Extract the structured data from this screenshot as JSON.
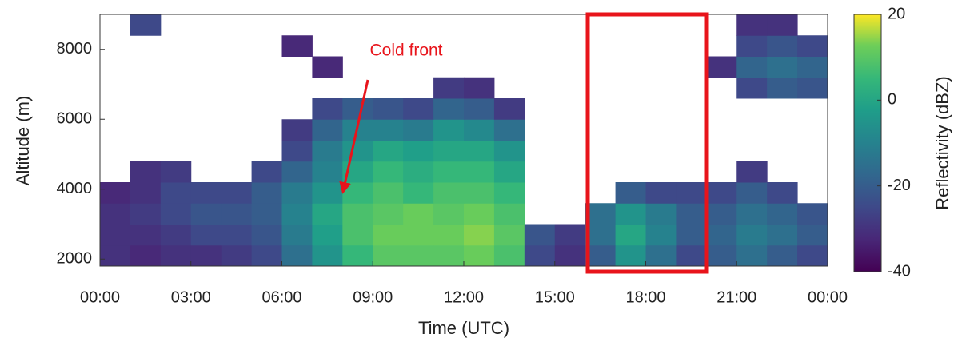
{
  "chart_data": {
    "type": "heatmap",
    "xlabel": "Time (UTC)",
    "ylabel": "Altitude (m)",
    "colorbar_label": "Reflectivity (dBZ)",
    "annotation": "Cold front",
    "colormap": "viridis",
    "xlim": [
      0,
      24
    ],
    "xticks": [
      {
        "value": 0,
        "label": "00:00"
      },
      {
        "value": 3,
        "label": "03:00"
      },
      {
        "value": 6,
        "label": "06:00"
      },
      {
        "value": 9,
        "label": "09:00"
      },
      {
        "value": 12,
        "label": "12:00"
      },
      {
        "value": 15,
        "label": "15:00"
      },
      {
        "value": 18,
        "label": "18:00"
      },
      {
        "value": 21,
        "label": "21:00"
      },
      {
        "value": 24,
        "label": "00:00"
      }
    ],
    "ylim": [
      1800,
      9000
    ],
    "yticks": [
      2000,
      4000,
      6000,
      8000
    ],
    "clim": [
      -40,
      20
    ],
    "cticks": [
      -40,
      -20,
      0,
      20
    ],
    "x": [
      0.5,
      1.5,
      2.5,
      3.5,
      4.5,
      5.5,
      6.5,
      7.5,
      8.5,
      9.5,
      10.5,
      11.5,
      12.5,
      13.5,
      14.5,
      15.5,
      16.5,
      17.5,
      18.5,
      19.5,
      20.5,
      21.5,
      22.5,
      23.5
    ],
    "y": [
      2100,
      2700,
      3300,
      3900,
      4500,
      5100,
      5700,
      6300,
      6900,
      7500,
      8100,
      8700
    ],
    "z": [
      [
        -30,
        -32,
        -30,
        -30,
        -28,
        -25,
        -15,
        -5,
        5,
        10,
        10,
        10,
        12,
        8,
        -25,
        -30,
        -20,
        -5,
        -15,
        -25,
        -20,
        -15,
        -20,
        -25
      ],
      [
        -30,
        -30,
        -28,
        -25,
        -25,
        -22,
        -12,
        -2,
        8,
        12,
        12,
        12,
        14,
        10,
        -22,
        -28,
        -15,
        0,
        -10,
        -20,
        -18,
        -12,
        -15,
        -20
      ],
      [
        -30,
        -28,
        -25,
        -22,
        -22,
        -20,
        -10,
        0,
        8,
        10,
        12,
        10,
        12,
        8,
        null,
        null,
        -15,
        -5,
        -12,
        -20,
        -20,
        -15,
        -18,
        -22
      ],
      [
        -32,
        -30,
        -25,
        -25,
        -25,
        -20,
        -12,
        -5,
        5,
        8,
        5,
        8,
        8,
        5,
        null,
        null,
        null,
        -20,
        -25,
        -25,
        -25,
        -20,
        -25,
        null
      ],
      [
        null,
        -30,
        -28,
        null,
        null,
        -25,
        -18,
        -10,
        0,
        5,
        2,
        5,
        5,
        0,
        null,
        null,
        null,
        null,
        null,
        null,
        null,
        -28,
        null,
        null
      ],
      [
        null,
        null,
        null,
        null,
        null,
        null,
        -25,
        -12,
        -5,
        0,
        -2,
        0,
        0,
        -5,
        null,
        null,
        null,
        null,
        null,
        null,
        null,
        null,
        null,
        null
      ],
      [
        null,
        null,
        null,
        null,
        null,
        null,
        -28,
        -18,
        -10,
        -10,
        -12,
        -5,
        -8,
        -15,
        null,
        null,
        null,
        null,
        null,
        null,
        null,
        null,
        null,
        null
      ],
      [
        null,
        null,
        null,
        null,
        null,
        null,
        null,
        -25,
        -20,
        -22,
        -25,
        -18,
        -20,
        -28,
        null,
        null,
        null,
        null,
        null,
        null,
        null,
        null,
        null,
        null
      ],
      [
        null,
        null,
        null,
        null,
        null,
        null,
        null,
        null,
        null,
        null,
        null,
        -28,
        -30,
        null,
        null,
        null,
        null,
        null,
        null,
        null,
        null,
        -25,
        -20,
        -22
      ],
      [
        null,
        null,
        null,
        null,
        null,
        null,
        null,
        -32,
        null,
        null,
        null,
        null,
        null,
        null,
        null,
        null,
        null,
        null,
        null,
        null,
        -30,
        -18,
        -15,
        -18
      ],
      [
        null,
        null,
        null,
        null,
        null,
        null,
        -32,
        null,
        null,
        null,
        null,
        null,
        null,
        null,
        null,
        null,
        null,
        null,
        null,
        null,
        null,
        -25,
        -22,
        -25
      ],
      [
        null,
        -25,
        null,
        null,
        null,
        null,
        null,
        null,
        null,
        null,
        null,
        null,
        null,
        null,
        null,
        null,
        null,
        null,
        null,
        null,
        null,
        -30,
        -30,
        null
      ]
    ]
  }
}
